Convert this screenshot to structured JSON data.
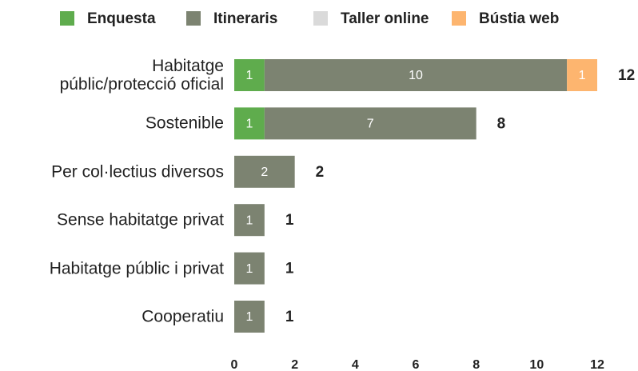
{
  "chart_data": {
    "type": "stacked_bar_horizontal",
    "categories": [
      "Habitatge\npúblic/protecció oficial",
      "Sostenible",
      "Per col·lectius diversos",
      "Sense habitatge privat",
      "Habitatge públic i privat",
      "Cooperatiu"
    ],
    "series": [
      {
        "name": "Enquesta",
        "color": "#5fac4d",
        "values": [
          1,
          1,
          null,
          null,
          null,
          null
        ]
      },
      {
        "name": "Itineraris",
        "color": "#7c8371",
        "values": [
          10,
          7,
          2,
          1,
          1,
          1
        ]
      },
      {
        "name": "Taller online",
        "color": "#dadada",
        "values": [
          null,
          null,
          null,
          null,
          null,
          null
        ]
      },
      {
        "name": "Bústia web",
        "color": "#fdb56f",
        "values": [
          1,
          null,
          null,
          null,
          null,
          null
        ]
      }
    ],
    "totals": [
      12,
      8,
      2,
      1,
      1,
      1
    ],
    "xlim": [
      0,
      12
    ],
    "xticks": [
      0,
      2,
      4,
      6,
      8,
      10,
      12
    ],
    "legend": "top"
  }
}
